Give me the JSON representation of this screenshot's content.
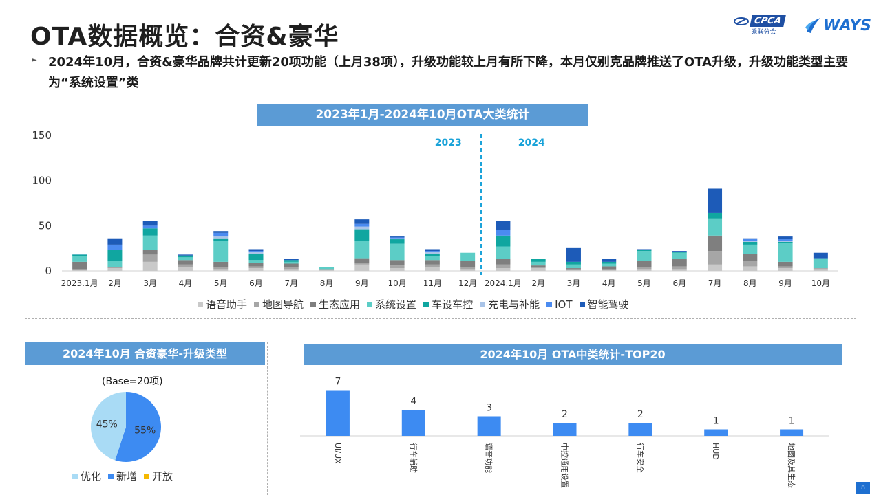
{
  "page": {
    "title": "OTA数据概览：合资&豪华",
    "summary": "2024年10月，合资&豪华品牌共计更新20项功能（上月38项），升级功能较上月有所下降，本月仅别克品牌推送了OTA升级，升级功能类型主要为“系统设置”类",
    "page_number": "8"
  },
  "logos": {
    "cpca": "CPCA",
    "cpca_sub": "乘联分会",
    "ways": "WAYS"
  },
  "sections": {
    "main_chart_header": "2023年1月-2024年10月OTA大类统计",
    "pie_header": "2024年10月 合资豪华-升级类型",
    "top20_header": "2024年10月 OTA中类统计-TOP20"
  },
  "colors": {
    "header_bg": "#5b9bd5",
    "divider_line": "#1aa3d9"
  },
  "chart_data": [
    {
      "type": "bar",
      "stacked": true,
      "title": "2023年1月-2024年10月OTA大类统计",
      "categories": [
        "2023.1月",
        "2月",
        "3月",
        "4月",
        "5月",
        "6月",
        "7月",
        "8月",
        "9月",
        "10月",
        "11月",
        "12月",
        "2024.1月",
        "2月",
        "3月",
        "4月",
        "5月",
        "6月",
        "7月",
        "8月",
        "9月",
        "10月"
      ],
      "year_markers": [
        "2023",
        "2024"
      ],
      "ylim": [
        0,
        150
      ],
      "yticks": [
        0,
        50,
        100,
        150
      ],
      "grid": false,
      "legend_position": "bottom",
      "series": [
        {
          "name": "语音助手",
          "color": "#c9c9c9",
          "values": [
            1,
            3,
            10,
            4,
            2,
            3,
            2,
            1,
            7,
            3,
            4,
            2,
            3,
            3,
            1,
            1,
            2,
            2,
            7,
            5,
            3,
            2
          ]
        },
        {
          "name": "地图导航",
          "color": "#a6a6a6",
          "values": [
            1,
            1,
            8,
            3,
            2,
            2,
            2,
            1,
            2,
            3,
            3,
            2,
            4,
            1,
            1,
            1,
            2,
            3,
            15,
            6,
            2,
            1
          ]
        },
        {
          "name": "生态应用",
          "color": "#7f7f7f",
          "values": [
            8,
            0,
            5,
            5,
            6,
            4,
            4,
            0,
            5,
            6,
            5,
            7,
            6,
            2,
            1,
            3,
            7,
            8,
            17,
            8,
            5,
            0
          ]
        },
        {
          "name": "系统设置",
          "color": "#5ccdc6",
          "values": [
            6,
            7,
            16,
            3,
            23,
            3,
            2,
            2,
            19,
            18,
            4,
            9,
            14,
            4,
            4,
            3,
            11,
            7,
            19,
            10,
            21,
            11
          ]
        },
        {
          "name": "车设车控",
          "color": "#10a6a0",
          "values": [
            2,
            12,
            8,
            2,
            3,
            7,
            2,
            0,
            13,
            5,
            3,
            0,
            12,
            3,
            3,
            2,
            1,
            1,
            6,
            3,
            1,
            0
          ]
        },
        {
          "name": "充电与补能",
          "color": "#a9c4e8",
          "values": [
            1,
            0,
            0,
            0,
            2,
            2,
            0,
            0,
            3,
            1,
            2,
            0,
            0,
            0,
            0,
            0,
            0,
            0,
            0,
            1,
            1,
            0
          ]
        },
        {
          "name": "IOT",
          "color": "#4b8bf0",
          "values": [
            0,
            6,
            3,
            0,
            4,
            1,
            0,
            0,
            3,
            1,
            1,
            0,
            6,
            0,
            0,
            0,
            0,
            0,
            0,
            2,
            2,
            0
          ]
        },
        {
          "name": "智能驾驶",
          "color": "#1d5bb8",
          "values": [
            0,
            7,
            5,
            1,
            2,
            2,
            1,
            0,
            5,
            1,
            2,
            0,
            10,
            0,
            16,
            3,
            1,
            1,
            27,
            1,
            3,
            6
          ]
        }
      ]
    },
    {
      "type": "pie",
      "title": "2024年10月 合资豪华-升级类型",
      "subtitle": "(Base=20项)",
      "legend_position": "bottom",
      "slices": [
        {
          "name": "优化",
          "value": 45,
          "label": "45%",
          "color": "#a9dbf5"
        },
        {
          "name": "新增",
          "value": 55,
          "label": "55%",
          "color": "#3d8bf2"
        },
        {
          "name": "开放",
          "value": 0,
          "label": "",
          "color": "#f5b800"
        }
      ]
    },
    {
      "type": "bar",
      "title": "2024年10月 OTA中类统计-TOP20",
      "categories": [
        "UI/UX",
        "行车辅助",
        "语音功能",
        "中控通用设置",
        "行车安全",
        "HUD",
        "地图及其生态"
      ],
      "values": [
        7,
        4,
        3,
        2,
        2,
        1,
        1
      ],
      "color": "#3d8bf2",
      "grid": false
    }
  ]
}
